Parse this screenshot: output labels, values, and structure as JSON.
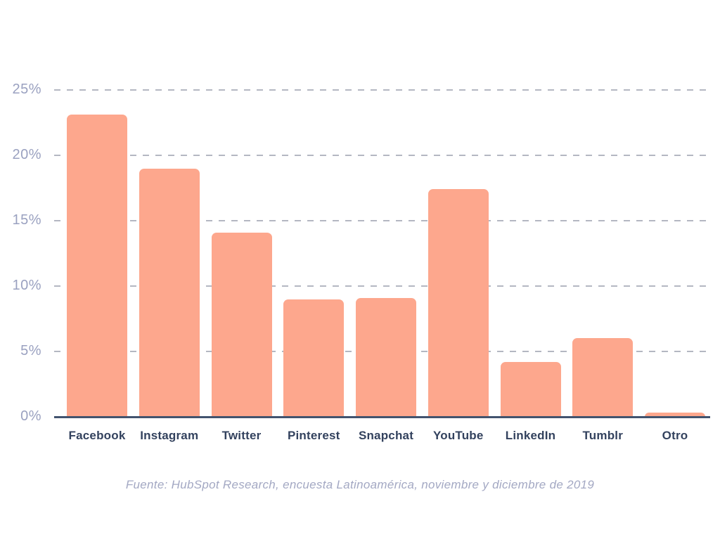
{
  "chart_data": {
    "type": "bar",
    "categories": [
      "Facebook",
      "Instagram",
      "Twitter",
      "Pinterest",
      "Snapchat",
      "YouTube",
      "LinkedIn",
      "Tumblr",
      "Otro"
    ],
    "values": [
      23.1,
      19.0,
      14.1,
      9.0,
      9.1,
      17.4,
      4.2,
      6.0,
      0.3
    ],
    "title": "",
    "xlabel": "",
    "ylabel": "",
    "ylim": [
      0,
      25
    ],
    "yticks": [
      0,
      5,
      10,
      15,
      20,
      25
    ],
    "ytick_labels": [
      "0%",
      "5%",
      "10%",
      "15%",
      "20%",
      "25%"
    ],
    "grid": "horizontal-dashed",
    "legend": "none",
    "bar_color": "#FDA78D",
    "axis_line_color": "#42536E",
    "gridline_color": "#B4B7C2",
    "ytick_label_color": "#9AA1C0",
    "category_label_color": "#33425E"
  },
  "footer": {
    "text": "Fuente: HubSpot Research, encuesta Latinoamérica, noviembre y diciembre de 2019"
  }
}
